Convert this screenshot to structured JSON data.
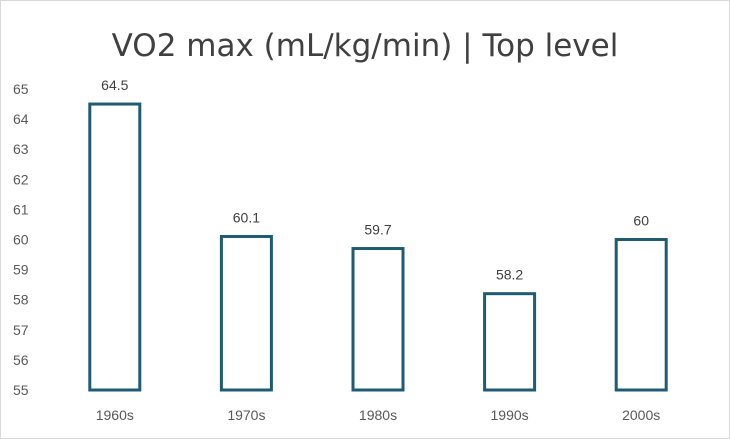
{
  "chart_data": {
    "type": "bar",
    "title": "VO2 max (mL/kg/min) | Top level",
    "xlabel": "",
    "ylabel": "",
    "categories": [
      "1960s",
      "1970s",
      "1980s",
      "1990s",
      "2000s"
    ],
    "values": [
      64.5,
      60.1,
      59.7,
      58.2,
      60
    ],
    "ylim": [
      55,
      65
    ],
    "yticks": [
      55,
      56,
      57,
      58,
      59,
      60,
      61,
      62,
      63,
      64,
      65
    ],
    "grid": false,
    "legend": "none",
    "bar_style": "outline",
    "colors": {
      "bar_outline": "#1f5b73",
      "bar_fill": "#ffffff"
    }
  }
}
